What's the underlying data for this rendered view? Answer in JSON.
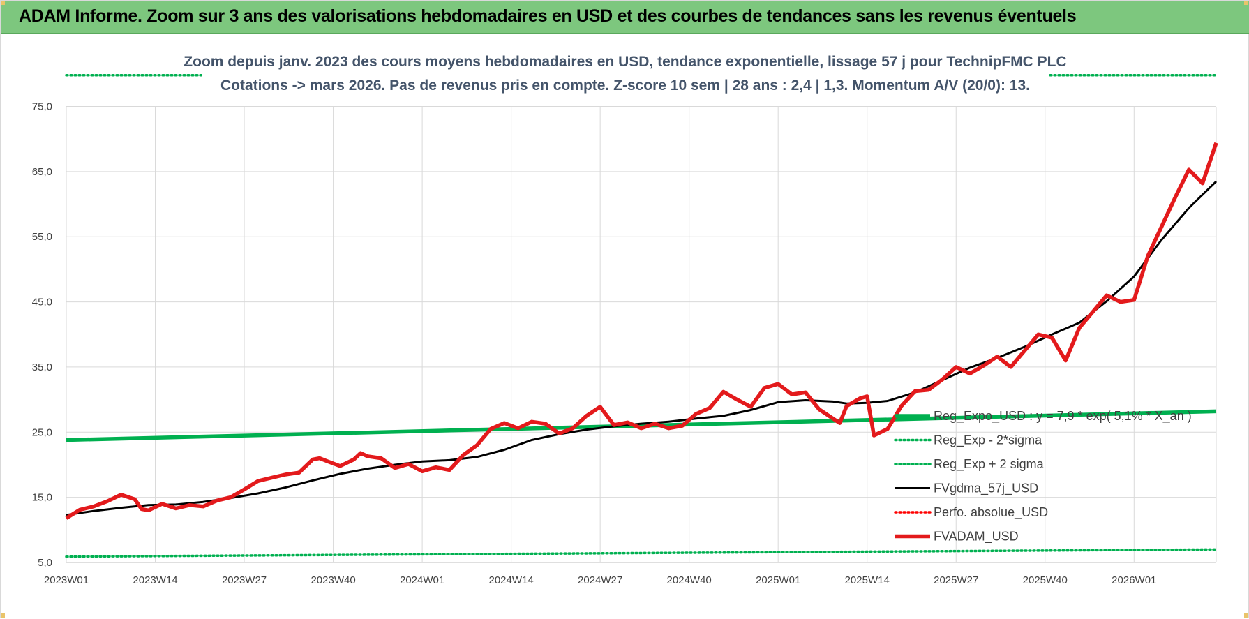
{
  "banner": {
    "title": "ADAM Informe. Zoom sur 3 ans des valorisations hebdomadaires en USD et des courbes de tendances sans les revenus éventuels"
  },
  "chart_data": {
    "type": "line",
    "title_line1": "Zoom depuis janv. 2023 des cours moyens hebdomadaires en USD, tendance exponentielle, lissage 57 j pour TechnipFMC PLC",
    "title_line2": "Cotations -> mars 2026. Pas de revenus pris en compte. Z-score 10 sem | 28 ans : 2,4 | 1,3. Momentum A/V (20/0): 13.",
    "ylim": [
      5,
      75
    ],
    "y_ticks": [
      "75,0",
      "65,0",
      "55,0",
      "45,0",
      "35,0",
      "25,0",
      "15,0",
      "5,0"
    ],
    "y_tick_values": [
      75,
      65,
      55,
      45,
      35,
      25,
      15,
      5
    ],
    "x_ticks": [
      "2023W01",
      "2023W14",
      "2023W27",
      "2023W40",
      "2024W01",
      "2024W14",
      "2024W27",
      "2024W40",
      "2025W01",
      "2025W14",
      "2025W27",
      "2025W40",
      "2026W01"
    ],
    "x_tick_index": [
      0,
      13,
      26,
      39,
      52,
      65,
      78,
      91,
      104,
      117,
      130,
      143,
      156
    ],
    "x_count": 169,
    "grid": true,
    "legend_position": "bottom-right",
    "series": [
      {
        "name": "Reg_Expo_USD : y = 7,9 * exp( 5,1% * X_an )",
        "color": "#00b050",
        "style": "solid-thick",
        "x": [
          0,
          168
        ],
        "y": [
          23.8,
          28.2
        ]
      },
      {
        "name": "Reg_Exp - 2*sigma",
        "color": "#00b050",
        "style": "dotted",
        "x": [
          0,
          168
        ],
        "y": [
          5.9,
          7.0
        ]
      },
      {
        "name": "Reg_Exp + 2 sigma",
        "color": "#00b050",
        "style": "dotted",
        "x": [
          0,
          20,
          148,
          168
        ],
        "y": [
          79.8,
          79.8,
          79.8,
          79.8
        ]
      },
      {
        "name": "FVgdma_57j_USD",
        "color": "#000000",
        "style": "solid",
        "x": [
          0,
          4,
          8,
          12,
          16,
          20,
          24,
          28,
          32,
          36,
          40,
          44,
          48,
          52,
          56,
          60,
          64,
          68,
          72,
          76,
          80,
          84,
          88,
          92,
          96,
          100,
          104,
          108,
          112,
          114,
          117,
          120,
          124,
          128,
          132,
          136,
          140,
          144,
          148,
          152,
          156,
          160,
          164,
          168
        ],
        "y": [
          12.3,
          12.9,
          13.4,
          13.8,
          13.9,
          14.3,
          14.9,
          15.6,
          16.5,
          17.6,
          18.6,
          19.4,
          20.0,
          20.5,
          20.7,
          21.2,
          22.3,
          23.8,
          24.7,
          25.4,
          25.9,
          26.3,
          26.6,
          27.1,
          27.5,
          28.4,
          29.6,
          29.9,
          29.7,
          29.4,
          29.5,
          29.8,
          31.1,
          33.0,
          34.9,
          36.4,
          38.1,
          40.0,
          41.8,
          45.1,
          48.9,
          54.5,
          59.4,
          63.5
        ]
      },
      {
        "name": "Perfo. absolue_USD",
        "color": "#ff0000",
        "style": "dotted",
        "x": [],
        "y": []
      },
      {
        "name": "FVADAM_USD",
        "color": "#e31a1c",
        "style": "solid-thick",
        "x": [
          0,
          2,
          4,
          6,
          8,
          10,
          11,
          12,
          13,
          14,
          16,
          18,
          20,
          22,
          24,
          26,
          28,
          30,
          32,
          34,
          36,
          37,
          38,
          40,
          42,
          43,
          44,
          46,
          48,
          50,
          52,
          54,
          56,
          58,
          60,
          62,
          64,
          66,
          68,
          70,
          72,
          74,
          76,
          78,
          80,
          82,
          84,
          86,
          88,
          90,
          92,
          94,
          96,
          98,
          100,
          102,
          104,
          106,
          108,
          110,
          112,
          113,
          114,
          116,
          117,
          118,
          120,
          122,
          124,
          126,
          128,
          130,
          132,
          134,
          136,
          138,
          140,
          142,
          144,
          146,
          148,
          150,
          152,
          154,
          156,
          158,
          160,
          162,
          164,
          166,
          168
        ],
        "y": [
          11.8,
          13.1,
          13.6,
          14.4,
          15.4,
          14.7,
          13.2,
          13.0,
          13.5,
          14.0,
          13.3,
          13.8,
          13.6,
          14.5,
          15.0,
          16.2,
          17.5,
          18.0,
          18.5,
          18.8,
          20.8,
          21.0,
          20.6,
          19.8,
          20.8,
          21.8,
          21.3,
          21.0,
          19.5,
          20.1,
          19.0,
          19.6,
          19.2,
          21.5,
          23.0,
          25.5,
          26.4,
          25.6,
          26.6,
          26.3,
          24.8,
          25.6,
          27.5,
          28.9,
          26.1,
          26.5,
          25.6,
          26.3,
          25.6,
          26.0,
          27.8,
          28.7,
          31.2,
          30.0,
          28.9,
          31.8,
          32.4,
          30.8,
          31.1,
          28.5,
          27.1,
          26.4,
          29.0,
          30.2,
          30.5,
          24.5,
          25.5,
          29.0,
          31.3,
          31.5,
          33.1,
          35.0,
          34.0,
          35.2,
          36.6,
          35.0,
          37.5,
          40.0,
          39.5,
          36.0,
          41.0,
          43.5,
          46.0,
          45.0,
          45.3,
          52.0,
          56.5,
          61.0,
          65.3,
          63.2,
          69.4
        ]
      }
    ]
  }
}
